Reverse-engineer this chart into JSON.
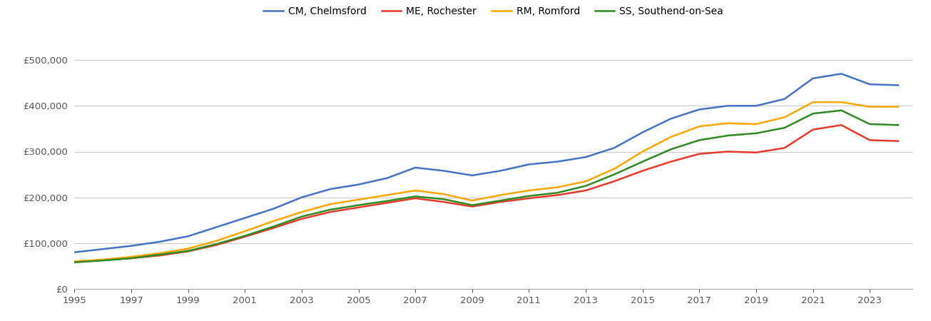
{
  "legend_labels": [
    "CM, Chelmsford",
    "ME, Rochester",
    "RM, Romford",
    "SS, Southend-on-Sea"
  ],
  "colors": [
    "#4472C4",
    "#E8392A",
    "#FFA500",
    "#2E8B22"
  ],
  "years": [
    1995,
    1996,
    1997,
    1998,
    1999,
    2000,
    2001,
    2002,
    2003,
    2004,
    2005,
    2006,
    2007,
    2008,
    2009,
    2010,
    2011,
    2012,
    2013,
    2014,
    2015,
    2016,
    2017,
    2018,
    2019,
    2020,
    2021,
    2022,
    2023,
    2024
  ],
  "CM": [
    80000,
    87000,
    94000,
    103000,
    115000,
    135000,
    155000,
    175000,
    200000,
    218000,
    228000,
    242000,
    265000,
    258000,
    248000,
    258000,
    272000,
    278000,
    288000,
    308000,
    342000,
    372000,
    392000,
    400000,
    400000,
    415000,
    460000,
    470000,
    447000,
    445000
  ],
  "ME": [
    60000,
    63000,
    67000,
    73000,
    82000,
    96000,
    114000,
    133000,
    153000,
    168000,
    178000,
    188000,
    198000,
    190000,
    180000,
    190000,
    198000,
    205000,
    215000,
    235000,
    258000,
    278000,
    295000,
    300000,
    298000,
    308000,
    348000,
    358000,
    325000,
    323000
  ],
  "RM": [
    60000,
    64000,
    70000,
    78000,
    88000,
    105000,
    126000,
    148000,
    168000,
    185000,
    195000,
    205000,
    215000,
    207000,
    193000,
    205000,
    215000,
    222000,
    235000,
    262000,
    300000,
    332000,
    355000,
    362000,
    360000,
    375000,
    408000,
    408000,
    398000,
    398000
  ],
  "SS": [
    58000,
    62000,
    67000,
    75000,
    83000,
    98000,
    116000,
    136000,
    158000,
    173000,
    183000,
    192000,
    202000,
    196000,
    183000,
    193000,
    203000,
    210000,
    225000,
    250000,
    278000,
    305000,
    325000,
    335000,
    340000,
    352000,
    383000,
    390000,
    360000,
    358000
  ],
  "ylim": [
    0,
    540000
  ],
  "yticks": [
    0,
    100000,
    200000,
    300000,
    400000,
    500000
  ],
  "xticks": [
    1995,
    1997,
    1999,
    2001,
    2003,
    2005,
    2007,
    2009,
    2011,
    2013,
    2015,
    2017,
    2019,
    2021,
    2023
  ],
  "xlim_left": 1995,
  "xlim_right": 2024.5,
  "background_color": "#ffffff",
  "grid_color": "#cccccc",
  "line_width": 1.8
}
